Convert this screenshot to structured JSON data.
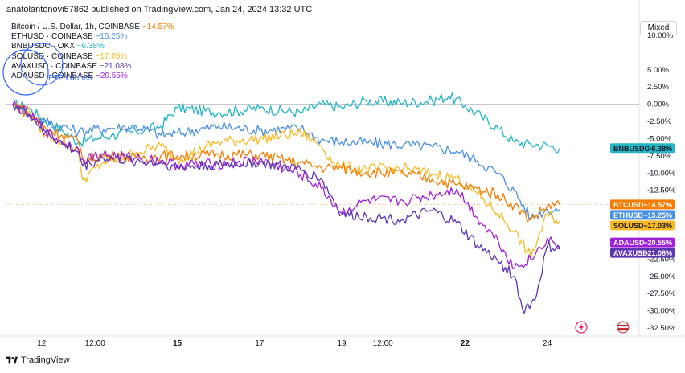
{
  "header": {
    "text": "anatolantonovi57862 published on TradingView.com, Jan 24, 2024 13:32 UTC"
  },
  "scale_mode": {
    "label": "Mixed"
  },
  "footer": {
    "brand": "TradingView"
  },
  "annotation": {
    "text": "ETF Launch"
  },
  "colors": {
    "btc": "#f57c00",
    "eth": "#4a90e2",
    "bnb": "#26b5c4",
    "sol": "#f9b924",
    "avax": "#5e35b1",
    "ada": "#a020d8"
  },
  "chart_data": {
    "type": "line",
    "yunit": "%",
    "ylim": [
      -33,
      10
    ],
    "yticks": [
      "10.00%",
      "5.00%",
      "2.50%",
      "0.00%",
      "-2.50%",
      "-5.00%",
      "-7.50%",
      "-10.00%",
      "-12.50%",
      "-20.00%",
      "-22.50%",
      "-25.00%",
      "-27.50%",
      "-30.00%",
      "-32.50%"
    ],
    "ytick_values": [
      10,
      5,
      2.5,
      0,
      -2.5,
      -5,
      -7.5,
      -10,
      -12.5,
      -20,
      -22.5,
      -25,
      -27.5,
      -30,
      -32.5
    ],
    "xticks": [
      "12",
      "12:00",
      "15",
      "17",
      "19",
      "12:00",
      "22",
      "24"
    ],
    "xtick_pos": [
      0.7,
      2,
      4,
      6,
      8,
      9,
      11,
      13
    ],
    "xlim": [
      0,
      15
    ],
    "series": [
      {
        "key": "btc",
        "label": "Bitcoin / U.S. Dollar, 1h, COINBASE",
        "change": "−14.57%",
        "tag": "BTCUSD",
        "tag_value": "−14.57%",
        "points": [
          [
            0,
            0
          ],
          [
            0.4,
            -1.5
          ],
          [
            0.8,
            -3.5
          ],
          [
            1.2,
            -4.5
          ],
          [
            1.6,
            -5.5
          ],
          [
            1.7,
            -8
          ],
          [
            2.2,
            -7.5
          ],
          [
            3,
            -7.8
          ],
          [
            3.6,
            -7.5
          ],
          [
            4,
            -7.5
          ],
          [
            5,
            -7.3
          ],
          [
            6,
            -7.4
          ],
          [
            7,
            -8.5
          ],
          [
            7.5,
            -9.2
          ],
          [
            8,
            -9.3
          ],
          [
            8.6,
            -9.9
          ],
          [
            9.5,
            -10.1
          ],
          [
            10.2,
            -10.9
          ],
          [
            10.8,
            -11.7
          ],
          [
            11.3,
            -12.3
          ],
          [
            11.8,
            -13.1
          ],
          [
            12.2,
            -14.7
          ],
          [
            12.6,
            -16.8
          ],
          [
            13.0,
            -14.8
          ],
          [
            13.3,
            -14.6
          ]
        ]
      },
      {
        "key": "eth",
        "label": "ETHUSD · COINBASE",
        "change": "−15.25%",
        "tag": "ETHUSD",
        "tag_value": "−15.25%",
        "points": [
          [
            0,
            0
          ],
          [
            0.4,
            -1.5
          ],
          [
            0.8,
            -2.5
          ],
          [
            1.2,
            -3.2
          ],
          [
            1.6,
            -4
          ],
          [
            2.3,
            -3.5
          ],
          [
            3,
            -3.2
          ],
          [
            3.6,
            -4.5
          ],
          [
            4,
            -4.2
          ],
          [
            5,
            -3.2
          ],
          [
            6,
            -3.8
          ],
          [
            7,
            -3.5
          ],
          [
            7.5,
            -5.2
          ],
          [
            8,
            -5.5
          ],
          [
            8.6,
            -5.6
          ],
          [
            9.5,
            -5.9
          ],
          [
            10.2,
            -6.2
          ],
          [
            10.8,
            -6.8
          ],
          [
            11.3,
            -8.2
          ],
          [
            11.8,
            -10.1
          ],
          [
            12.2,
            -12.6
          ],
          [
            12.6,
            -16.5
          ],
          [
            13.0,
            -15.3
          ],
          [
            13.3,
            -15.3
          ]
        ]
      },
      {
        "key": "bnb",
        "label": "BNBUSDC · OKX",
        "change": "−6.38%",
        "tag": "BNBUSDC",
        "tag_value": "−6.38%",
        "points": [
          [
            0,
            0
          ],
          [
            0.4,
            -0.6
          ],
          [
            0.8,
            -2.5
          ],
          [
            1.2,
            -3.8
          ],
          [
            1.6,
            -5.5
          ],
          [
            2,
            -5.0
          ],
          [
            2.4,
            -4.5
          ],
          [
            3,
            -4.0
          ],
          [
            3.6,
            -3.2
          ],
          [
            4,
            -0.5
          ],
          [
            5,
            -1.2
          ],
          [
            6,
            -0.6
          ],
          [
            7,
            -1.2
          ],
          [
            7.5,
            0
          ],
          [
            8,
            -0.5
          ],
          [
            8.6,
            0.5
          ],
          [
            9.5,
            0.2
          ],
          [
            10.2,
            0.5
          ],
          [
            10.6,
            1.2
          ],
          [
            11,
            -0.2
          ],
          [
            11.4,
            -1.8
          ],
          [
            11.8,
            -3.5
          ],
          [
            12.2,
            -5.5
          ],
          [
            12.6,
            -5.8
          ],
          [
            13.0,
            -6
          ],
          [
            13.3,
            -6.4
          ]
        ]
      },
      {
        "key": "sol",
        "label": "SOLUSD · COINBASE",
        "change": "−17.03%",
        "tag": "SOLUSD",
        "tag_value": "−17.03%",
        "points": [
          [
            0,
            0
          ],
          [
            0.4,
            -1.0
          ],
          [
            0.8,
            -4.5
          ],
          [
            1.2,
            -5.5
          ],
          [
            1.6,
            -7
          ],
          [
            1.7,
            -11
          ],
          [
            2.2,
            -8.5
          ],
          [
            3,
            -7
          ],
          [
            3.6,
            -6
          ],
          [
            4,
            -8
          ],
          [
            5,
            -5.5
          ],
          [
            6,
            -5.0
          ],
          [
            7,
            -4.2
          ],
          [
            7.5,
            -6
          ],
          [
            7.8,
            -8.5
          ],
          [
            8,
            -9.0
          ],
          [
            8.6,
            -9.4
          ],
          [
            9.5,
            -9.3
          ],
          [
            10.2,
            -10.1
          ],
          [
            10.8,
            -10.8
          ],
          [
            11.3,
            -13.1
          ],
          [
            11.8,
            -15.8
          ],
          [
            12.2,
            -18.5
          ],
          [
            12.6,
            -22.2
          ],
          [
            13.0,
            -16.0
          ],
          [
            13.3,
            -17.0
          ]
        ]
      },
      {
        "key": "avax",
        "label": "AVAXUSD · COINBASE",
        "change": "−21.08%",
        "tag": "AVAXUSD",
        "tag_value": "−21.08%",
        "points": [
          [
            0,
            0
          ],
          [
            0.4,
            -1.5
          ],
          [
            0.8,
            -4.0
          ],
          [
            1.2,
            -5.8
          ],
          [
            1.6,
            -7.0
          ],
          [
            1.7,
            -9.0
          ],
          [
            2.2,
            -7.8
          ],
          [
            3,
            -8.3
          ],
          [
            3.6,
            -8.5
          ],
          [
            4,
            -9.2
          ],
          [
            5,
            -8.8
          ],
          [
            6,
            -8.5
          ],
          [
            7,
            -9.5
          ],
          [
            7.5,
            -10.8
          ],
          [
            8,
            -16.0
          ],
          [
            8.6,
            -16.3
          ],
          [
            9.5,
            -16.8
          ],
          [
            10.2,
            -15.5
          ],
          [
            10.8,
            -17.3
          ],
          [
            11.3,
            -20.5
          ],
          [
            11.8,
            -22.8
          ],
          [
            12.2,
            -25.0
          ],
          [
            12.4,
            -29.9
          ],
          [
            12.7,
            -28.5
          ],
          [
            13.0,
            -20.6
          ],
          [
            13.3,
            -21.1
          ]
        ]
      },
      {
        "key": "ada",
        "label": "ADAUSD · COINBASE",
        "change": "−20.55%",
        "tag": "ADAUSD",
        "tag_value": "−20.55%",
        "points": [
          [
            0,
            0
          ],
          [
            0.4,
            -1.5
          ],
          [
            0.8,
            -4.0
          ],
          [
            1.2,
            -5.5
          ],
          [
            1.6,
            -6.5
          ],
          [
            1.7,
            -8.0
          ],
          [
            2.2,
            -7.3
          ],
          [
            3,
            -7.8
          ],
          [
            3.6,
            -8.2
          ],
          [
            4,
            -8.8
          ],
          [
            5,
            -8.7
          ],
          [
            6,
            -8.1
          ],
          [
            7,
            -10.2
          ],
          [
            7.5,
            -12.2
          ],
          [
            8,
            -15.8
          ],
          [
            8.6,
            -14.0
          ],
          [
            9.5,
            -14.1
          ],
          [
            10.2,
            -13.2
          ],
          [
            10.8,
            -12.3
          ],
          [
            11.3,
            -16.5
          ],
          [
            11.8,
            -19.8
          ],
          [
            12.2,
            -23.8
          ],
          [
            12.6,
            -22.5
          ],
          [
            13.0,
            -19.5
          ],
          [
            13.3,
            -20.6
          ]
        ]
      }
    ]
  }
}
